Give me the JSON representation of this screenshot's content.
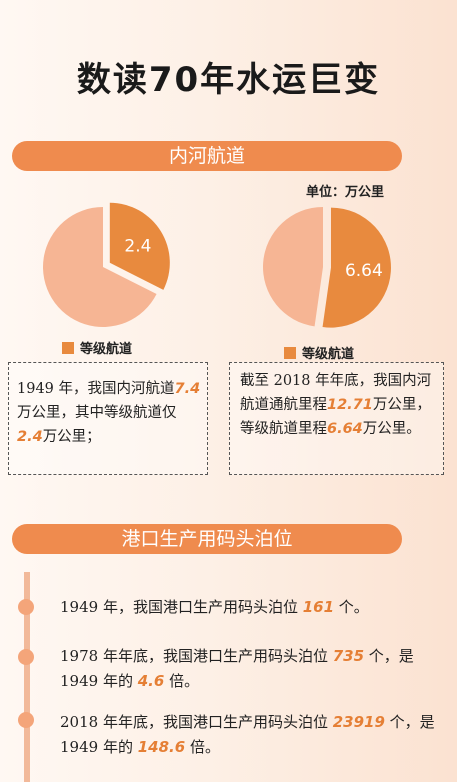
{
  "page_title": "数读70年水运巨变",
  "section1": {
    "title": "内河航道",
    "unit": "单位：万公里",
    "pie1": {
      "value_label": "2.4",
      "total": 7.4,
      "part": 2.4,
      "legend": "等级航道"
    },
    "pie2": {
      "value_label": "6.64",
      "total": 12.71,
      "part": 6.64,
      "legend": "等级航道"
    },
    "box1": {
      "p1": "1949 年，我国内河航道",
      "v1": "7.4",
      "p2": "万公里，其中等级航道仅",
      "v2": "2.4",
      "p3": "万公里；"
    },
    "box2": {
      "p1": "截至 2018 年年底，我国内河航道通航里程",
      "v1": "12.71",
      "p2": "万公里，等级航道里程",
      "v2": "6.64",
      "p3": "万公里。"
    }
  },
  "section2": {
    "title": "港口生产用码头泊位",
    "items": [
      {
        "p1": "1949 年，我国港口生产用码头泊位 ",
        "v1": "161",
        "p2": " 个。"
      },
      {
        "p1": "1978 年年底，我国港口生产用码头泊位 ",
        "v1": "735",
        "p2": " 个，是 1949 年的 ",
        "v2": "4.6",
        "p3": " 倍。"
      },
      {
        "p1": "2018 年年底，我国港口生产用码头泊位 ",
        "v1": "23919",
        "p2": " 个，是 1949 年的 ",
        "v2": "148.6",
        "p3": " 倍。"
      }
    ]
  },
  "colors": {
    "banner": "#ef8b4e",
    "highlight": "#e57f35",
    "pie_dark": "#e88a3e",
    "pie_light": "#f6b594"
  }
}
